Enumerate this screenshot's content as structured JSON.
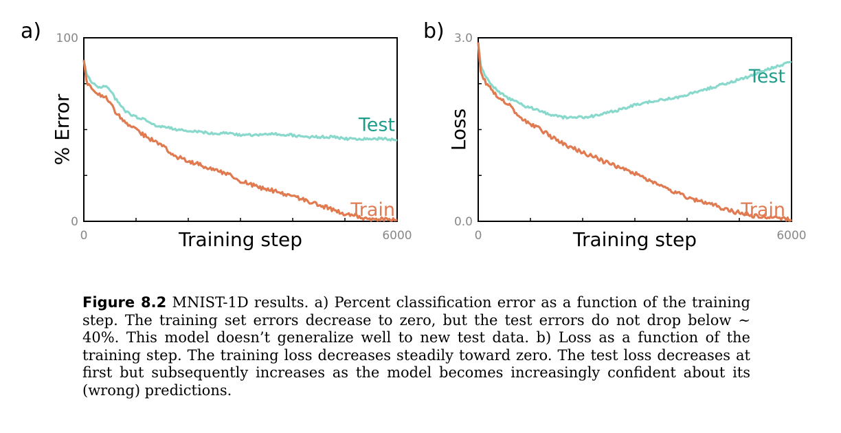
{
  "colors": {
    "train": "#E07A50",
    "test": "#88D8CC",
    "test_label": "#1E9E8A",
    "train_label": "#E07A50",
    "tick": "#888888"
  },
  "chart_data": [
    {
      "panel": "a)",
      "type": "line",
      "xlabel": "Training step",
      "ylabel": "% Error",
      "xlim": [
        0,
        6000
      ],
      "ylim": [
        0,
        100
      ],
      "x_tick_labels": [
        "0",
        "6000"
      ],
      "y_tick_labels": [
        "0",
        "100"
      ],
      "x": [
        0,
        50,
        100,
        150,
        200,
        300,
        400,
        500,
        600,
        700,
        800,
        900,
        1000,
        1200,
        1400,
        1600,
        1800,
        2000,
        2200,
        2400,
        2600,
        2800,
        3000,
        3200,
        3400,
        3600,
        3800,
        4000,
        4200,
        4400,
        4600,
        4800,
        5000,
        5200,
        5400,
        5600,
        5800,
        6000
      ],
      "series": [
        {
          "name": "Test",
          "values": [
            88,
            80,
            78,
            76,
            75,
            73,
            74,
            72,
            67,
            63,
            60,
            58,
            57,
            55,
            52,
            51,
            50,
            49,
            49,
            48,
            48,
            48,
            47,
            47,
            47,
            48,
            47,
            47,
            46,
            46,
            46,
            46,
            45,
            45,
            45,
            45,
            45,
            44
          ]
        },
        {
          "name": "Train",
          "values": [
            88,
            76,
            74,
            72,
            71,
            69,
            68,
            65,
            60,
            57,
            54,
            52,
            50,
            46,
            43,
            39,
            35,
            33,
            31,
            29,
            27,
            25,
            22,
            20,
            18,
            17,
            15,
            14,
            12,
            10,
            8,
            6,
            4,
            3,
            1,
            1,
            1,
            1
          ]
        }
      ]
    },
    {
      "panel": "b)",
      "type": "line",
      "xlabel": "Training step",
      "ylabel": "Loss",
      "xlim": [
        0,
        6000
      ],
      "ylim": [
        0.0,
        3.0
      ],
      "x_tick_labels": [
        "0",
        "6000"
      ],
      "y_tick_labels": [
        "0.0",
        "3.0"
      ],
      "x": [
        0,
        50,
        100,
        150,
        200,
        300,
        400,
        500,
        600,
        700,
        800,
        900,
        1000,
        1200,
        1400,
        1600,
        1800,
        2000,
        2200,
        2400,
        2600,
        2800,
        3000,
        3200,
        3400,
        3600,
        3800,
        4000,
        4200,
        4400,
        4600,
        4800,
        5000,
        5200,
        5400,
        5600,
        5800,
        6000
      ],
      "series": [
        {
          "name": "Test",
          "values": [
            2.9,
            2.55,
            2.45,
            2.35,
            2.3,
            2.2,
            2.12,
            2.05,
            2.0,
            1.96,
            1.92,
            1.88,
            1.86,
            1.8,
            1.74,
            1.7,
            1.7,
            1.7,
            1.72,
            1.76,
            1.8,
            1.85,
            1.9,
            1.93,
            1.98,
            2.0,
            2.02,
            2.07,
            2.12,
            2.17,
            2.22,
            2.27,
            2.32,
            2.37,
            2.44,
            2.5,
            2.55,
            2.6
          ]
        },
        {
          "name": "Train",
          "values": [
            2.9,
            2.45,
            2.35,
            2.25,
            2.2,
            2.1,
            2.0,
            1.95,
            1.9,
            1.8,
            1.7,
            1.65,
            1.6,
            1.5,
            1.38,
            1.28,
            1.2,
            1.12,
            1.06,
            0.98,
            0.92,
            0.85,
            0.78,
            0.7,
            0.62,
            0.53,
            0.46,
            0.4,
            0.34,
            0.3,
            0.24,
            0.18,
            0.14,
            0.1,
            0.08,
            0.05,
            0.04,
            0.03
          ]
        }
      ]
    }
  ],
  "caption": {
    "label": "Figure 8.2",
    "text": "MNIST-1D results. a) Percent classification error as a function of the training step. The training set errors decrease to zero, but the test errors do not drop below ∼ 40%. This model doesn’t generalize well to new test data. b) Loss as a function of the training step. The training loss decreases steadily toward zero. The test loss decreases at first but subsequently increases as the model becomes increasingly confident about its (wrong) predictions."
  }
}
